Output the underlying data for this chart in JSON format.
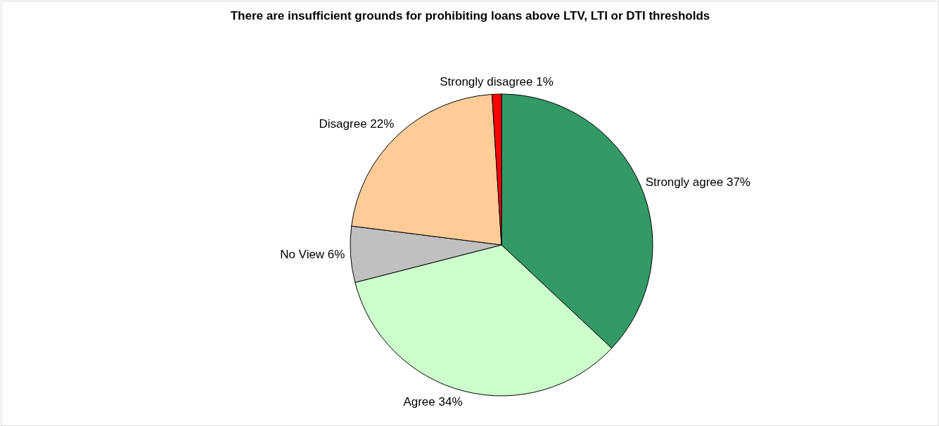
{
  "chart_data": {
    "type": "pie",
    "title": "There are insufficient grounds for prohibiting loans above LTV, LTI or DTI thresholds",
    "categories": [
      "Strongly agree",
      "Agree",
      "No View",
      "Disagree",
      "Strongly disagree"
    ],
    "values": [
      37,
      34,
      6,
      22,
      1
    ],
    "colors": [
      "#339966",
      "#ccffcc",
      "#c0c0c0",
      "#ffcc99",
      "#ff0000"
    ],
    "value_labels": [
      "37%",
      "34%",
      "6%",
      "22%",
      "1%"
    ]
  }
}
